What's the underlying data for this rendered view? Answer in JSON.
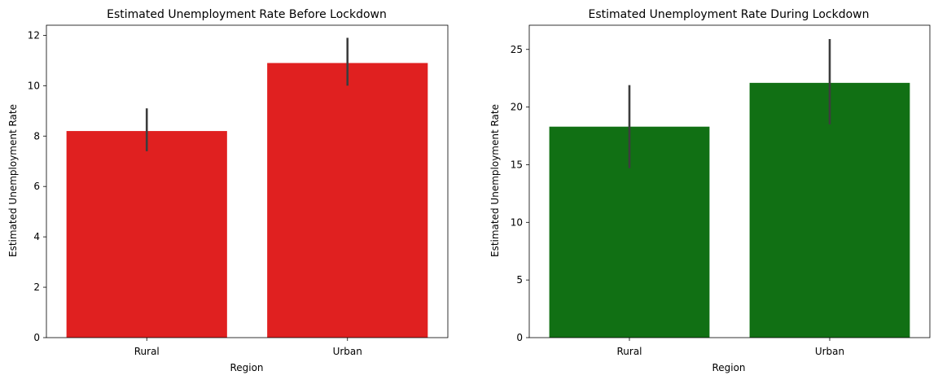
{
  "chart_data": [
    {
      "type": "bar",
      "title": "Estimated Unemployment Rate Before Lockdown",
      "xlabel": "Region",
      "ylabel": "Estimated Unemployment Rate",
      "categories": [
        "Rural",
        "Urban"
      ],
      "values": [
        8.2,
        10.9
      ],
      "error_low": [
        7.4,
        10.0
      ],
      "error_high": [
        9.1,
        11.9
      ],
      "ylim": [
        0,
        12.4
      ],
      "yticks": [
        0,
        2,
        4,
        6,
        8,
        10,
        12
      ],
      "bar_color": "#e02020",
      "error_color": "#3d3d3d",
      "grid": false
    },
    {
      "type": "bar",
      "title": "Estimated Unemployment Rate During Lockdown",
      "xlabel": "Region",
      "ylabel": "Estimated Unemployment Rate",
      "categories": [
        "Rural",
        "Urban"
      ],
      "values": [
        18.3,
        22.1
      ],
      "error_low": [
        14.7,
        18.5
      ],
      "error_high": [
        21.9,
        25.9
      ],
      "ylim": [
        0,
        27.1
      ],
      "yticks": [
        0,
        5,
        10,
        15,
        20,
        25
      ],
      "bar_color": "#117014",
      "error_color": "#3d3d3d",
      "grid": false
    }
  ]
}
